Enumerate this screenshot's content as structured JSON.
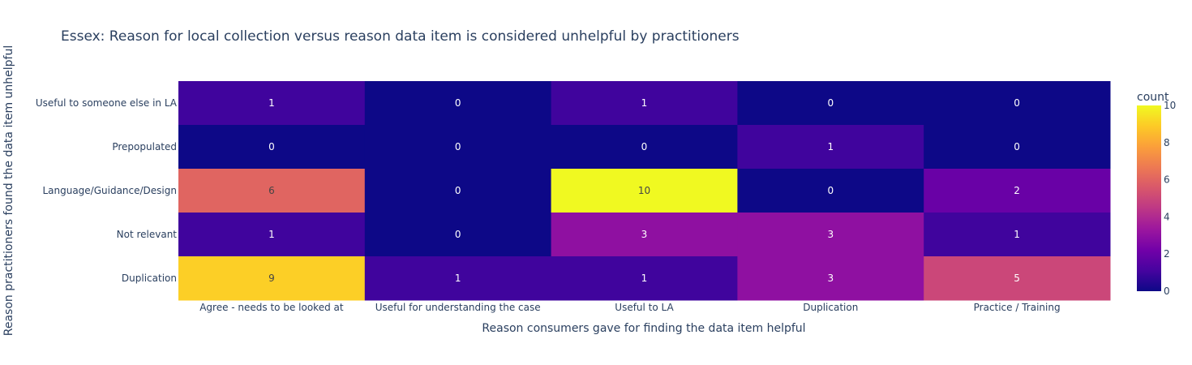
{
  "chart_data": {
    "type": "heatmap",
    "title": "Essex: Reason for local collection versus reason data item is considered unhelpful by practitioners",
    "xlabel": "Reason consumers gave for finding the data item helpful",
    "ylabel": "Reason practitioners found the data item unhelpful",
    "x_categories": [
      "Agree - needs to be looked at",
      "Useful for understanding the case",
      "Useful to LA",
      "Duplication",
      "Practice / Training"
    ],
    "y_categories": [
      "Useful to someone else in LA",
      "Prepopulated",
      "Language/Guidance/Design",
      "Not relevant",
      "Duplication"
    ],
    "z": [
      [
        1,
        0,
        1,
        0,
        0
      ],
      [
        0,
        0,
        0,
        1,
        0
      ],
      [
        6,
        0,
        10,
        0,
        2
      ],
      [
        1,
        0,
        3,
        3,
        1
      ],
      [
        9,
        1,
        1,
        3,
        5
      ]
    ],
    "colorbar": {
      "title": "count",
      "range": [
        0,
        10
      ],
      "ticks": [
        0,
        2,
        4,
        6,
        8,
        10
      ],
      "colorscale": [
        "#0d0887",
        "#46039f",
        "#7201a8",
        "#9c179e",
        "#bd3786",
        "#d8576b",
        "#ed7953",
        "#fb9f3a",
        "#fdca26",
        "#f0f921"
      ]
    }
  }
}
